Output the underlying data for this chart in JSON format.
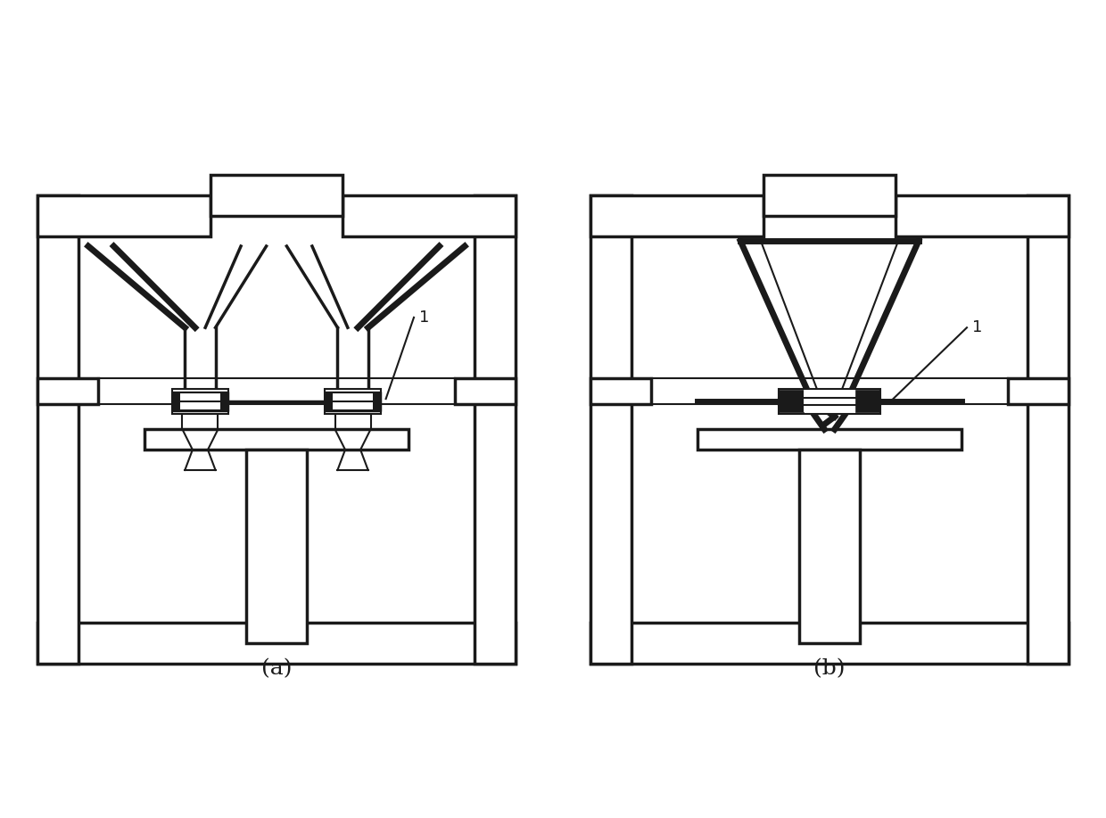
{
  "bg_color": "#ffffff",
  "line_color": "#1a1a1a",
  "fig_width": 12.4,
  "fig_height": 9.17,
  "label_a": "(a)",
  "label_b": "(b)"
}
